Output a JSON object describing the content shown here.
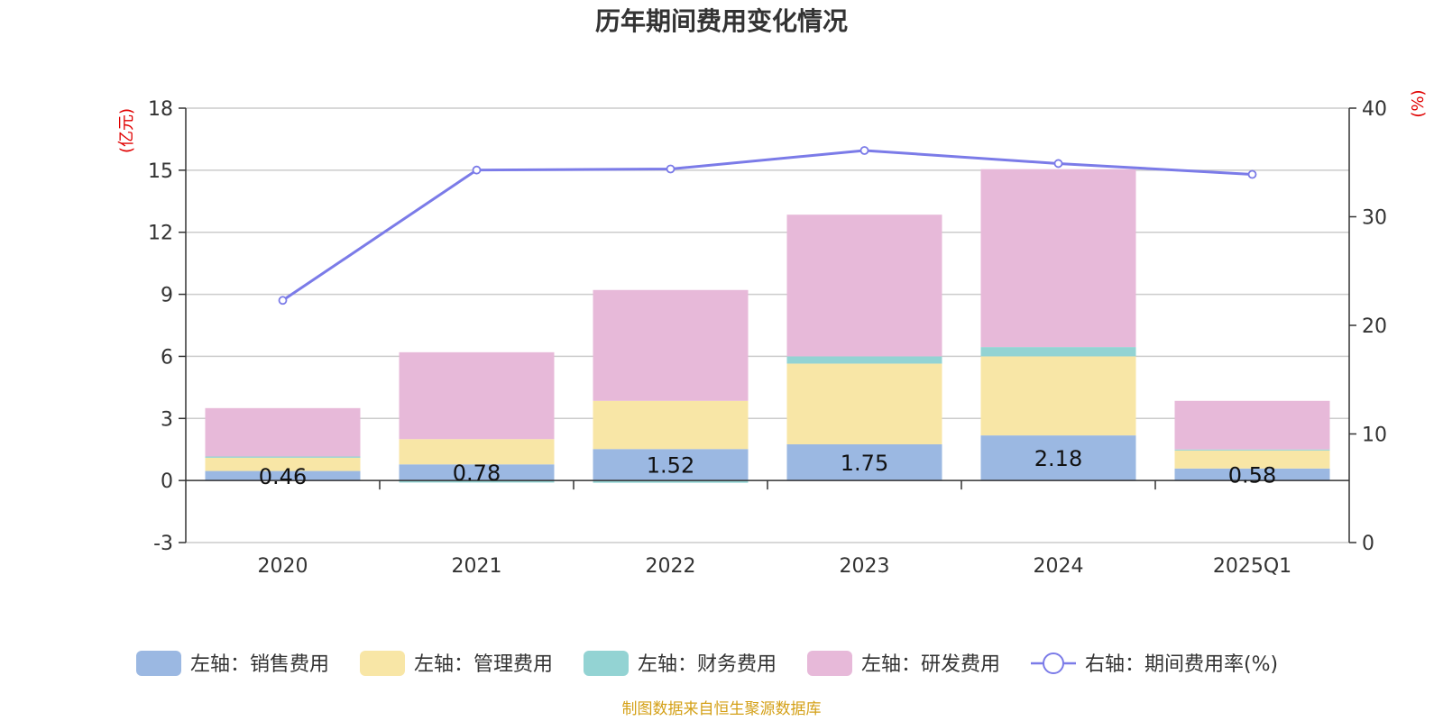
{
  "chart_data": {
    "type": "bar",
    "title": "历年期间费用变化情况",
    "categories": [
      "2020",
      "2021",
      "2022",
      "2023",
      "2024",
      "2025Q1"
    ],
    "left_axis": {
      "unit": "(亿元)",
      "ylim": [
        -3,
        18
      ],
      "ticks": [
        "-3",
        "0",
        "3",
        "6",
        "9",
        "12",
        "15",
        "18"
      ]
    },
    "right_axis": {
      "unit": "(%)",
      "ylim": [
        0,
        40
      ],
      "ticks": [
        "0",
        "10",
        "20",
        "30",
        "40"
      ]
    },
    "series": [
      {
        "name": "左轴：销售费用",
        "color": "#9bb8e2",
        "values": [
          0.46,
          0.78,
          1.52,
          1.75,
          2.18,
          0.58
        ],
        "labels": [
          "0.46",
          "0.78",
          "1.52",
          "1.75",
          "2.18",
          "0.58"
        ]
      },
      {
        "name": "左轴：管理费用",
        "color": "#f8e6a6",
        "values": [
          0.64,
          1.22,
          2.33,
          3.9,
          3.82,
          0.87
        ]
      },
      {
        "name": "左轴：财务费用",
        "color": "#93d3d3",
        "values": [
          0.06,
          -0.1,
          -0.11,
          0.35,
          0.45,
          0.05
        ]
      },
      {
        "name": "左轴：研发费用",
        "color": "#e7b9d9",
        "values": [
          2.34,
          4.2,
          5.36,
          6.85,
          8.6,
          2.35
        ]
      },
      {
        "name": "右轴：期间费用率(%)",
        "type": "line",
        "axis": "right",
        "color": "#7b7be8",
        "values": [
          22.3,
          34.3,
          34.4,
          36.1,
          34.9,
          33.9
        ]
      }
    ],
    "legend_position": "bottom",
    "grid": true
  },
  "source": "制图数据来自恒生聚源数据库"
}
